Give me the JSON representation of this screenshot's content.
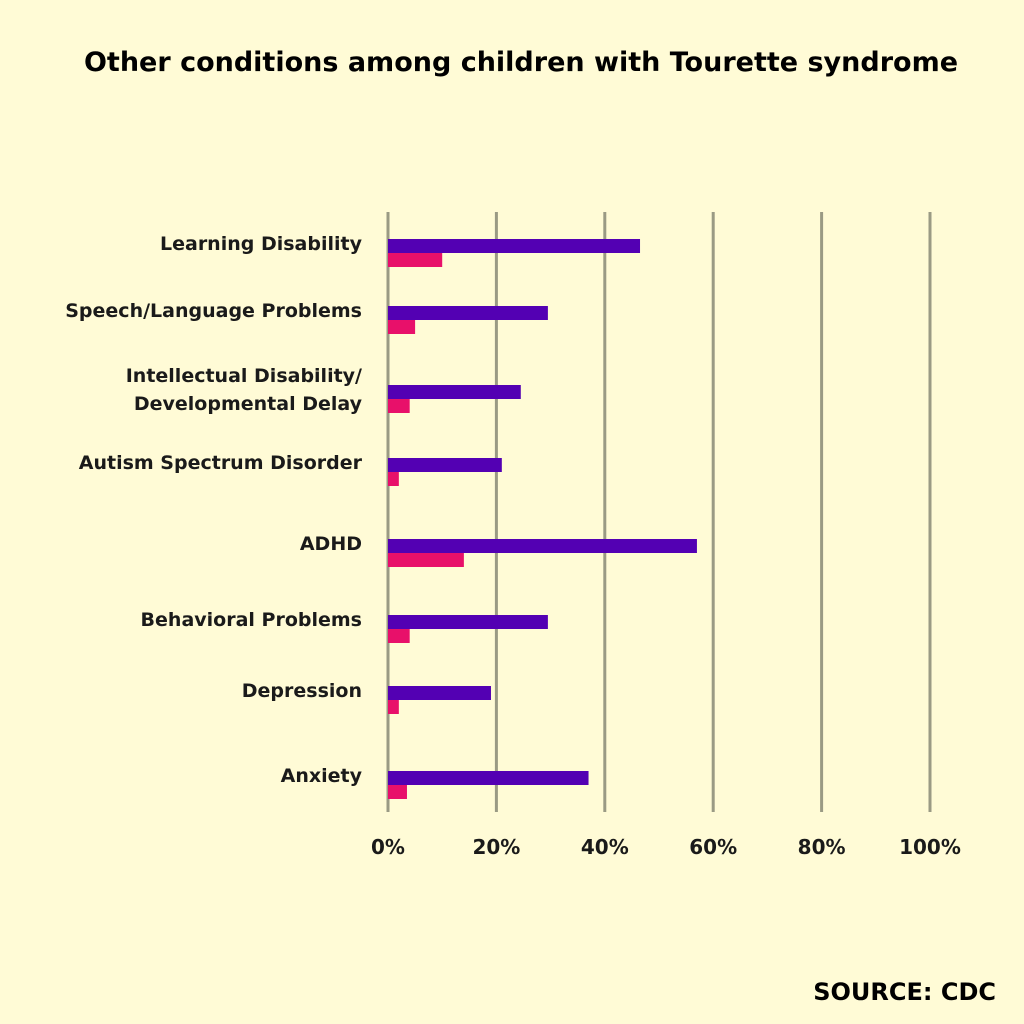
{
  "chart_data": {
    "type": "bar",
    "orientation": "horizontal",
    "title": "Other conditions among children with Tourette syndrome",
    "categories": [
      [
        "Learning Disability"
      ],
      [
        "Speech/Language Problems"
      ],
      [
        "Intellectual Disability/",
        "Developmental Delay"
      ],
      [
        "Autism Spectrum Disorder"
      ],
      [
        "ADHD"
      ],
      [
        "Behavioral Problems"
      ],
      [
        "Depression"
      ],
      [
        "Anxiety"
      ]
    ],
    "series": [
      {
        "values": [
          46.5,
          29.5,
          24.5,
          21,
          57,
          29.5,
          19,
          37
        ]
      },
      {
        "values": [
          10,
          5,
          4,
          2,
          14,
          4,
          2,
          3.5
        ]
      }
    ],
    "xlim": [
      0,
      100
    ],
    "xticks": [
      0,
      20,
      40,
      60,
      80,
      100
    ],
    "xtick_labels": [
      "0%",
      "20%",
      "40%",
      "60%",
      "80%",
      "100%"
    ],
    "grid": true,
    "legend": "none",
    "source": "SOURCE: CDC"
  },
  "colors": {
    "background": "#FFFBD6",
    "series_1": "#5300B3",
    "series_2": "#E8106A",
    "gridline": "#9A9A84"
  }
}
